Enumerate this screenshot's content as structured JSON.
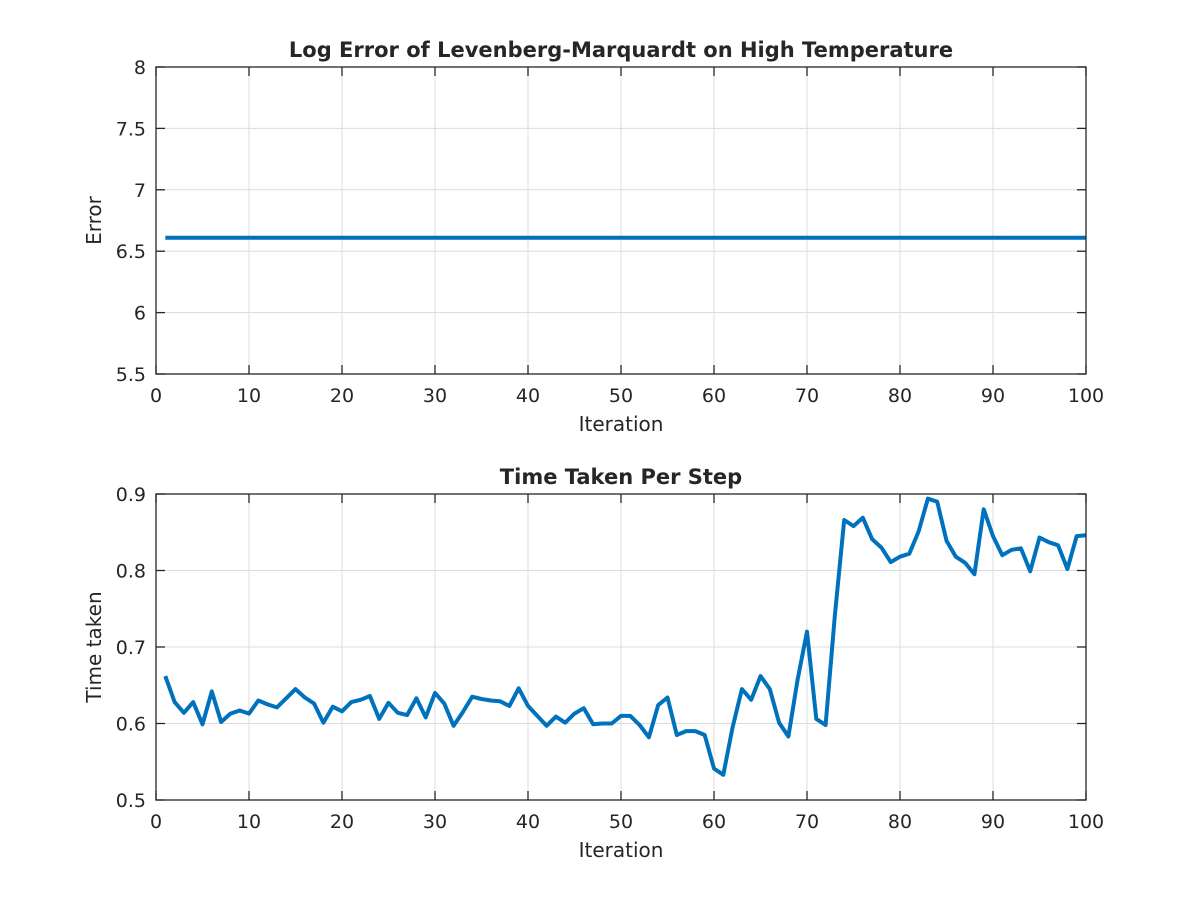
{
  "chart_data": [
    {
      "type": "line",
      "title": "Log Error of Levenberg-Marquardt on High Temperature",
      "xlabel": "Iteration",
      "ylabel": "Error",
      "xlim": [
        0,
        100
      ],
      "ylim": [
        5.5,
        8
      ],
      "xticks": [
        0,
        10,
        20,
        30,
        40,
        50,
        60,
        70,
        80,
        90,
        100
      ],
      "yticks": [
        5.5,
        6,
        6.5,
        7,
        7.5,
        8
      ],
      "ytick_labels": [
        "5.5",
        "6",
        "6.5",
        "7",
        "7.5",
        "8"
      ],
      "grid": true,
      "color": "#0072bd",
      "x": [
        1,
        100
      ],
      "values": [
        6.61,
        6.61
      ]
    },
    {
      "type": "line",
      "title": "Time Taken Per Step",
      "xlabel": "Iteration",
      "ylabel": "Time taken",
      "xlim": [
        0,
        100
      ],
      "ylim": [
        0.5,
        0.9
      ],
      "xticks": [
        0,
        10,
        20,
        30,
        40,
        50,
        60,
        70,
        80,
        90,
        100
      ],
      "yticks": [
        0.5,
        0.6,
        0.7,
        0.8,
        0.9
      ],
      "ytick_labels": [
        "0.5",
        "0.6",
        "0.7",
        "0.8",
        "0.9"
      ],
      "grid": true,
      "color": "#0072bd",
      "x": [
        1,
        2,
        3,
        4,
        5,
        6,
        7,
        8,
        9,
        10,
        11,
        12,
        13,
        14,
        15,
        16,
        17,
        18,
        19,
        20,
        21,
        22,
        23,
        24,
        25,
        26,
        27,
        28,
        29,
        30,
        31,
        32,
        33,
        34,
        35,
        36,
        37,
        38,
        39,
        40,
        41,
        42,
        43,
        44,
        45,
        46,
        47,
        48,
        49,
        50,
        51,
        52,
        53,
        54,
        55,
        56,
        57,
        58,
        59,
        60,
        61,
        62,
        63,
        64,
        65,
        66,
        67,
        68,
        69,
        70,
        71,
        72,
        73,
        74,
        75,
        76,
        77,
        78,
        79,
        80,
        81,
        82,
        83,
        84,
        85,
        86,
        87,
        88,
        89,
        90,
        91,
        92,
        93,
        94,
        95,
        96,
        97,
        98,
        99,
        100
      ],
      "values": [
        0.662,
        0.628,
        0.614,
        0.628,
        0.599,
        0.642,
        0.602,
        0.613,
        0.617,
        0.613,
        0.63,
        0.625,
        0.621,
        0.633,
        0.645,
        0.634,
        0.626,
        0.601,
        0.622,
        0.616,
        0.628,
        0.631,
        0.636,
        0.606,
        0.627,
        0.614,
        0.611,
        0.633,
        0.608,
        0.64,
        0.626,
        0.597,
        0.615,
        0.635,
        0.632,
        0.63,
        0.629,
        0.623,
        0.646,
        0.623,
        0.61,
        0.597,
        0.609,
        0.601,
        0.613,
        0.62,
        0.599,
        0.6,
        0.6,
        0.61,
        0.61,
        0.598,
        0.582,
        0.624,
        0.634,
        0.585,
        0.59,
        0.59,
        0.585,
        0.541,
        0.533,
        0.595,
        0.645,
        0.631,
        0.662,
        0.645,
        0.601,
        0.583,
        0.658,
        0.72,
        0.606,
        0.598,
        0.742,
        0.866,
        0.858,
        0.869,
        0.841,
        0.83,
        0.811,
        0.818,
        0.822,
        0.851,
        0.894,
        0.89,
        0.839,
        0.818,
        0.81,
        0.795,
        0.88,
        0.845,
        0.82,
        0.827,
        0.829,
        0.799,
        0.843,
        0.837,
        0.833,
        0.802,
        0.845,
        0.846
      ]
    }
  ]
}
